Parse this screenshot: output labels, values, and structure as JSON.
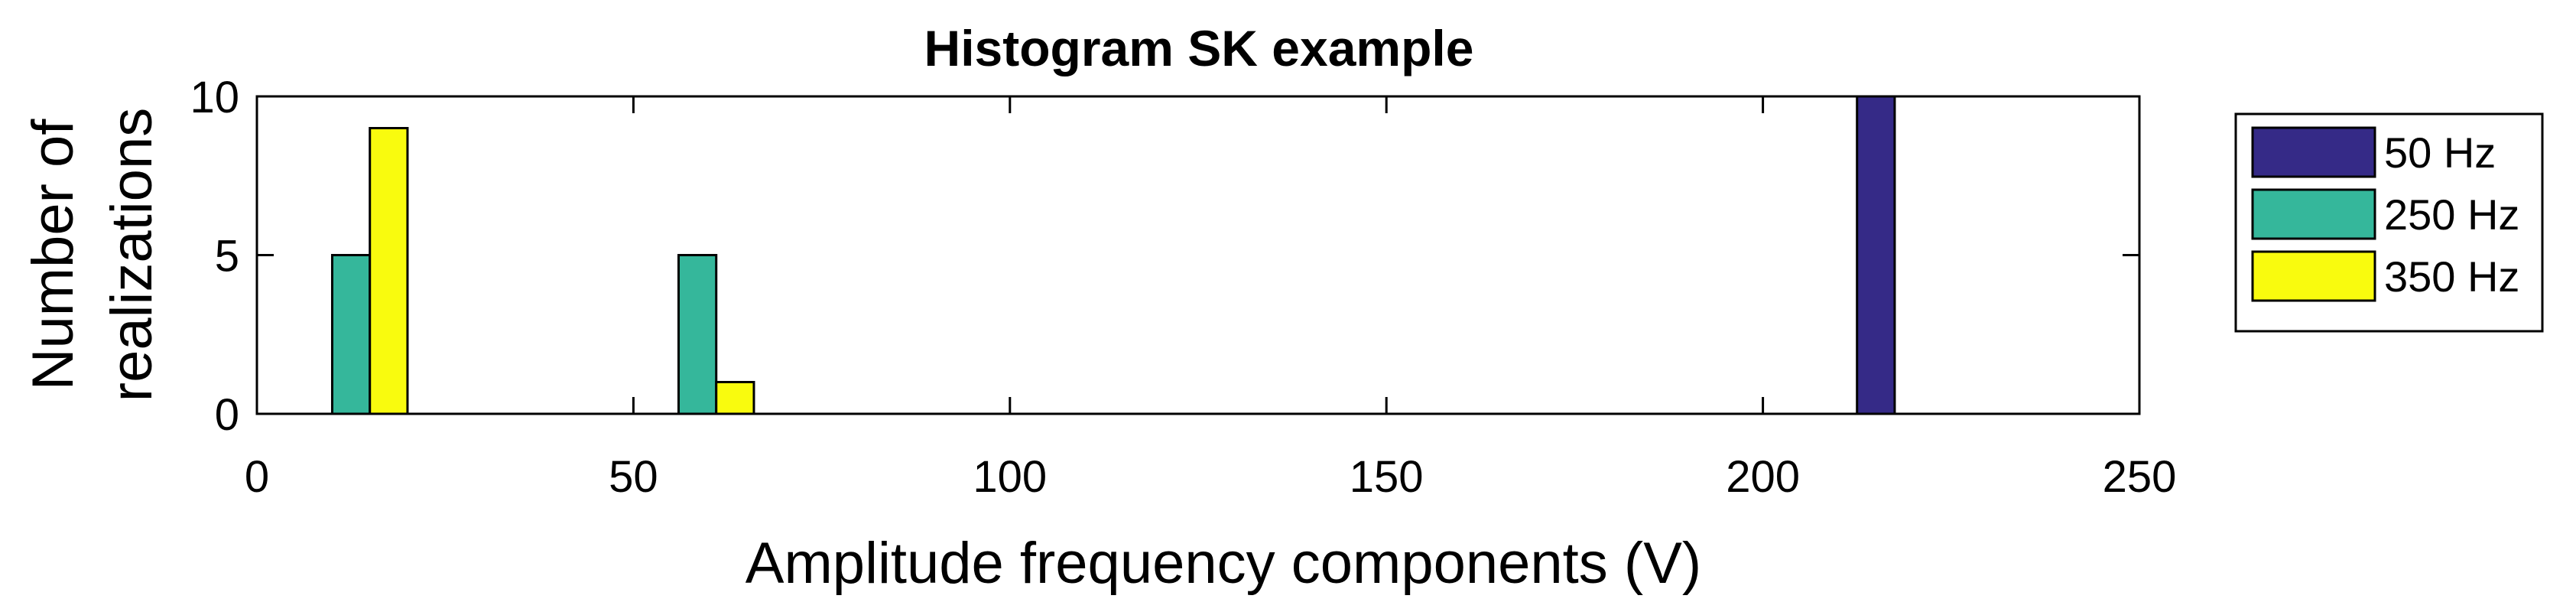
{
  "chart_data": {
    "type": "bar",
    "title": "Histogram SK example",
    "xlabel": "Amplitude frequency components (V)",
    "ylabel_lines": [
      "Number of",
      "realizations"
    ],
    "xlim": [
      0,
      250
    ],
    "ylim": [
      0,
      10
    ],
    "xticks": [
      0,
      50,
      100,
      150,
      200,
      250
    ],
    "yticks": [
      0,
      5,
      10
    ],
    "grid": false,
    "legend_placement": "outside-right",
    "bin_width": 5,
    "series": [
      {
        "name": "50 Hz",
        "color": "#352a87",
        "bars": [
          {
            "x": 215,
            "value": 10
          }
        ]
      },
      {
        "name": "250 Hz",
        "color": "#35b79b",
        "bars": [
          {
            "x": 12.5,
            "value": 5
          },
          {
            "x": 58.5,
            "value": 5
          }
        ]
      },
      {
        "name": "350 Hz",
        "color": "#f9fb0e",
        "bars": [
          {
            "x": 17.5,
            "value": 9
          },
          {
            "x": 63.5,
            "value": 1
          }
        ]
      }
    ]
  }
}
